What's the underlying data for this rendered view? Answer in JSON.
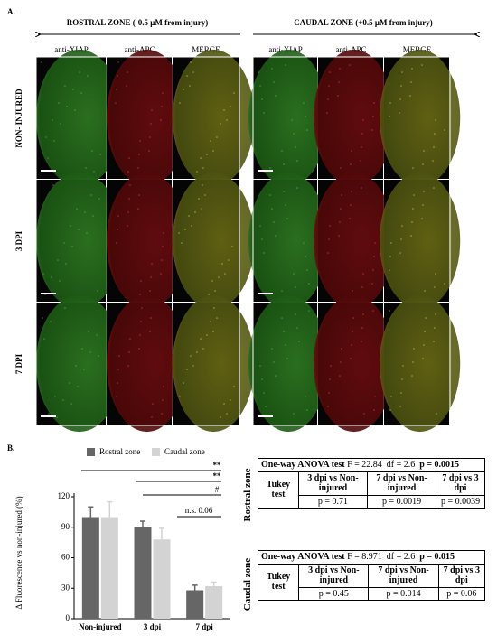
{
  "panel_a": {
    "label": "A.",
    "rostral_header": "ROSTRAL ZONE (-0.5 μM from injury)",
    "caudal_header": "CAUDAL ZONE (+0.5 μM from injury)",
    "columns": [
      "anti-XIAP",
      "anti-APC",
      "MERGE"
    ],
    "rows": [
      "NON- INJURED",
      "3 DPI",
      "7 DPI"
    ]
  },
  "panel_b": {
    "label": "B."
  },
  "chart_data": {
    "type": "bar",
    "y_label": "Δ Fluorescence vs non-injured (%)",
    "categories": [
      "Non-injured",
      "3 dpi",
      "7 dpi"
    ],
    "series": [
      {
        "name": "Rostral zone",
        "color": "#666666",
        "values": [
          100,
          90,
          28
        ],
        "errors": [
          10,
          6,
          5
        ]
      },
      {
        "name": "Caudal zone",
        "color": "#d3d3d3",
        "values": [
          100,
          78,
          32
        ],
        "errors": [
          15,
          11,
          4
        ]
      }
    ],
    "ylim": [
      0,
      120
    ],
    "yticks": [
      0,
      30,
      60,
      90,
      120
    ],
    "annotations": [
      "**",
      "**",
      "#",
      "n.s. 0.06"
    ]
  },
  "tables": [
    {
      "side_label": "Rostral zone",
      "test": "One-way ANOVA test",
      "f": "F = 22.84",
      "df": "df = 2.6",
      "p": "p = 0.0015",
      "row_label": "Tukey test",
      "comparisons": [
        "3 dpi vs Non-injured",
        "7 dpi vs Non-injured",
        "7 dpi vs 3 dpi"
      ],
      "p_values": [
        "p = 0.71",
        "p = 0.0019",
        "p = 0.0039"
      ]
    },
    {
      "side_label": "Caudal zone",
      "test": "One-way ANOVA test",
      "f": "F = 8.971",
      "df": "df = 2.6",
      "p": "p = 0.015",
      "row_label": "Tukey test",
      "comparisons": [
        "3 dpi vs Non-injured",
        "7 dpi vs Non-injured",
        "7 dpi vs 3 dpi"
      ],
      "p_values": [
        "p = 0.45",
        "p = 0.014",
        "p = 0.06"
      ]
    }
  ]
}
